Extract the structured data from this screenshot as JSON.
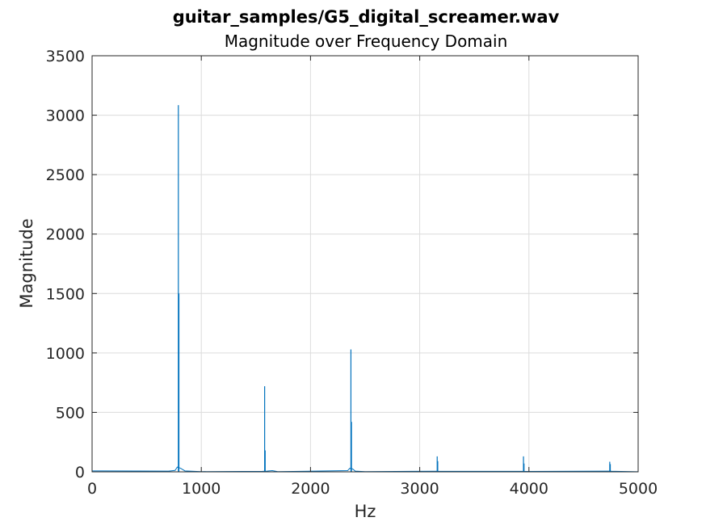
{
  "chart_data": {
    "type": "line",
    "title": "guitar_samples/G5_digital_screamer.wav",
    "subtitle": "Magnitude over Frequency Domain",
    "xlabel": "Hz",
    "ylabel": "Magnitude",
    "xlim": [
      0,
      5000
    ],
    "ylim": [
      0,
      3500
    ],
    "xticks": [
      0,
      1000,
      2000,
      3000,
      4000,
      5000
    ],
    "yticks": [
      0,
      500,
      1000,
      1500,
      2000,
      2500,
      3000,
      3500
    ],
    "grid": true,
    "line_color": "#0072bd",
    "series": [
      {
        "peaks": [
          {
            "x": 790,
            "y": 3085
          },
          {
            "x": 795,
            "y": 1500
          },
          {
            "x": 1580,
            "y": 720
          },
          {
            "x": 1585,
            "y": 180
          },
          {
            "x": 2370,
            "y": 1030
          },
          {
            "x": 2375,
            "y": 420
          },
          {
            "x": 3160,
            "y": 130
          },
          {
            "x": 3165,
            "y": 90
          },
          {
            "x": 3950,
            "y": 130
          },
          {
            "x": 3955,
            "y": 70
          },
          {
            "x": 4740,
            "y": 85
          },
          {
            "x": 4745,
            "y": 65
          }
        ],
        "baseline": [
          {
            "x": 0,
            "y": 8
          },
          {
            "x": 700,
            "y": 6
          },
          {
            "x": 760,
            "y": 12
          },
          {
            "x": 780,
            "y": 40
          },
          {
            "x": 810,
            "y": 30
          },
          {
            "x": 850,
            "y": 8
          },
          {
            "x": 1000,
            "y": 2
          },
          {
            "x": 1560,
            "y": 4
          },
          {
            "x": 1600,
            "y": 6
          },
          {
            "x": 1650,
            "y": 10
          },
          {
            "x": 1700,
            "y": 2
          },
          {
            "x": 2340,
            "y": 10
          },
          {
            "x": 2360,
            "y": 30
          },
          {
            "x": 2385,
            "y": 25
          },
          {
            "x": 2410,
            "y": 6
          },
          {
            "x": 2500,
            "y": 2
          },
          {
            "x": 3150,
            "y": 5
          },
          {
            "x": 3175,
            "y": 4
          },
          {
            "x": 3940,
            "y": 4
          },
          {
            "x": 3965,
            "y": 3
          },
          {
            "x": 4730,
            "y": 6
          },
          {
            "x": 4755,
            "y": 5
          },
          {
            "x": 5000,
            "y": 1
          }
        ]
      }
    ]
  }
}
